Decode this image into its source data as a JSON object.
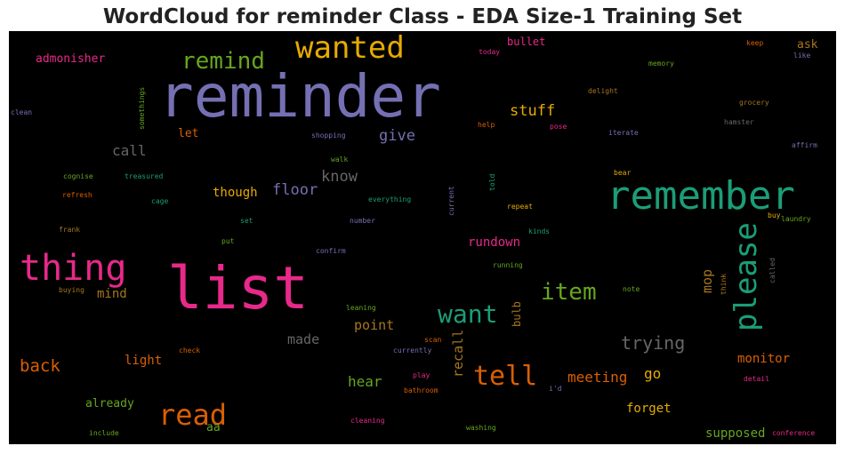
{
  "chart_data": {
    "type": "wordcloud",
    "title": "WordCloud for reminder Class - EDA Size-1 Training Set",
    "background": "#000000",
    "colormap": [
      "#7570b3",
      "#1b9e77",
      "#e7298a",
      "#d95f02",
      "#66a61e",
      "#e6ab02",
      "#a6761d",
      "#666666"
    ],
    "words": [
      {
        "text": "reminder",
        "weight": 100,
        "color": "#7570b3"
      },
      {
        "text": "list",
        "weight": 95,
        "color": "#e7298a"
      },
      {
        "text": "remember",
        "weight": 70,
        "color": "#1b9e77"
      },
      {
        "text": "thing",
        "weight": 65,
        "color": "#e7298a"
      },
      {
        "text": "wanted",
        "weight": 52,
        "color": "#e6ab02"
      },
      {
        "text": "please",
        "weight": 48,
        "color": "#1b9e77"
      },
      {
        "text": "read",
        "weight": 46,
        "color": "#d95f02"
      },
      {
        "text": "tell",
        "weight": 44,
        "color": "#d95f02"
      },
      {
        "text": "want",
        "weight": 40,
        "color": "#1b9e77"
      },
      {
        "text": "remind",
        "weight": 38,
        "color": "#66a61e"
      },
      {
        "text": "item",
        "weight": 36,
        "color": "#66a61e"
      },
      {
        "text": "trying",
        "weight": 27,
        "color": "#666666"
      },
      {
        "text": "back",
        "weight": 25,
        "color": "#d95f02"
      },
      {
        "text": "stuff",
        "weight": 22,
        "color": "#e6ab02"
      },
      {
        "text": "give",
        "weight": 22,
        "color": "#7570b3"
      },
      {
        "text": "know",
        "weight": 22,
        "color": "#666666"
      },
      {
        "text": "floor",
        "weight": 22,
        "color": "#7570b3"
      },
      {
        "text": "meeting",
        "weight": 22,
        "color": "#d95f02"
      },
      {
        "text": "hear",
        "weight": 22,
        "color": "#66a61e"
      },
      {
        "text": "call",
        "weight": 20,
        "color": "#666666"
      },
      {
        "text": "recall",
        "weight": 20,
        "color": "#a6761d"
      },
      {
        "text": "mop",
        "weight": 20,
        "color": "#a6761d"
      },
      {
        "text": "go",
        "weight": 20,
        "color": "#e6ab02"
      },
      {
        "text": "made",
        "weight": 19,
        "color": "#666666"
      },
      {
        "text": "point",
        "weight": 19,
        "color": "#a6761d"
      },
      {
        "text": "rundown",
        "weight": 19,
        "color": "#e7298a"
      },
      {
        "text": "monitor",
        "weight": 18,
        "color": "#d95f02"
      },
      {
        "text": "though",
        "weight": 18,
        "color": "#e6ab02"
      },
      {
        "text": "forget",
        "weight": 18,
        "color": "#e6ab02"
      },
      {
        "text": "already",
        "weight": 18,
        "color": "#66a61e"
      },
      {
        "text": "supposed",
        "weight": 18,
        "color": "#66a61e"
      },
      {
        "text": "mind",
        "weight": 18,
        "color": "#a6761d"
      },
      {
        "text": "light",
        "weight": 18,
        "color": "#d95f02"
      },
      {
        "text": "admonisher",
        "weight": 16,
        "color": "#e7298a"
      },
      {
        "text": "ask",
        "weight": 16,
        "color": "#a6761d"
      },
      {
        "text": "bullet",
        "weight": 16,
        "color": "#e7298a"
      },
      {
        "text": "let",
        "weight": 16,
        "color": "#d95f02"
      },
      {
        "text": "bulb",
        "weight": 16,
        "color": "#a6761d"
      },
      {
        "text": "aa",
        "weight": 16,
        "color": "#66a61e"
      },
      {
        "text": "today",
        "weight": 10,
        "color": "#e7298a"
      },
      {
        "text": "keep",
        "weight": 10,
        "color": "#d95f02"
      },
      {
        "text": "like",
        "weight": 10,
        "color": "#7570b3"
      },
      {
        "text": "memory",
        "weight": 10,
        "color": "#66a61e"
      },
      {
        "text": "delight",
        "weight": 10,
        "color": "#a6761d"
      },
      {
        "text": "grocery",
        "weight": 10,
        "color": "#a6761d"
      },
      {
        "text": "clean",
        "weight": 10,
        "color": "#7570b3"
      },
      {
        "text": "somethings",
        "weight": 10,
        "color": "#66a61e"
      },
      {
        "text": "help",
        "weight": 10,
        "color": "#d95f02"
      },
      {
        "text": "pose",
        "weight": 10,
        "color": "#e7298a"
      },
      {
        "text": "iterate",
        "weight": 10,
        "color": "#7570b3"
      },
      {
        "text": "hamster",
        "weight": 10,
        "color": "#666666"
      },
      {
        "text": "shopping",
        "weight": 10,
        "color": "#7570b3"
      },
      {
        "text": "affirm",
        "weight": 10,
        "color": "#7570b3"
      },
      {
        "text": "walk",
        "weight": 10,
        "color": "#66a61e"
      },
      {
        "text": "bear",
        "weight": 10,
        "color": "#e6ab02"
      },
      {
        "text": "cognise",
        "weight": 10,
        "color": "#66a61e"
      },
      {
        "text": "treasured",
        "weight": 10,
        "color": "#1b9e77"
      },
      {
        "text": "told",
        "weight": 10,
        "color": "#1b9e77"
      },
      {
        "text": "current",
        "weight": 10,
        "color": "#7570b3"
      },
      {
        "text": "refresh",
        "weight": 10,
        "color": "#d95f02"
      },
      {
        "text": "cage",
        "weight": 10,
        "color": "#1b9e77"
      },
      {
        "text": "everything",
        "weight": 10,
        "color": "#1b9e77"
      },
      {
        "text": "repeat",
        "weight": 10,
        "color": "#e6ab02"
      },
      {
        "text": "buy",
        "weight": 10,
        "color": "#e6ab02"
      },
      {
        "text": "laundry",
        "weight": 10,
        "color": "#66a61e"
      },
      {
        "text": "set",
        "weight": 10,
        "color": "#1b9e77"
      },
      {
        "text": "number",
        "weight": 10,
        "color": "#7570b3"
      },
      {
        "text": "frank",
        "weight": 10,
        "color": "#a6761d"
      },
      {
        "text": "kinds",
        "weight": 10,
        "color": "#1b9e77"
      },
      {
        "text": "put",
        "weight": 10,
        "color": "#66a61e"
      },
      {
        "text": "running",
        "weight": 10,
        "color": "#66a61e"
      },
      {
        "text": "confirm",
        "weight": 10,
        "color": "#7570b3"
      },
      {
        "text": "think",
        "weight": 10,
        "color": "#a6761d"
      },
      {
        "text": "called",
        "weight": 10,
        "color": "#666666"
      },
      {
        "text": "buying",
        "weight": 10,
        "color": "#a6761d"
      },
      {
        "text": "note",
        "weight": 10,
        "color": "#66a61e"
      },
      {
        "text": "leaning",
        "weight": 10,
        "color": "#66a61e"
      },
      {
        "text": "check",
        "weight": 10,
        "color": "#d95f02"
      },
      {
        "text": "scan",
        "weight": 10,
        "color": "#d95f02"
      },
      {
        "text": "currently",
        "weight": 10,
        "color": "#7570b3"
      },
      {
        "text": "play",
        "weight": 10,
        "color": "#e7298a"
      },
      {
        "text": "bathroom",
        "weight": 10,
        "color": "#d95f02"
      },
      {
        "text": "i'd",
        "weight": 10,
        "color": "#7570b3"
      },
      {
        "text": "detail",
        "weight": 10,
        "color": "#e7298a"
      },
      {
        "text": "cleaning",
        "weight": 10,
        "color": "#e7298a"
      },
      {
        "text": "washing",
        "weight": 10,
        "color": "#66a61e"
      },
      {
        "text": "include",
        "weight": 10,
        "color": "#66a61e"
      },
      {
        "text": "conference",
        "weight": 10,
        "color": "#e7298a"
      }
    ]
  }
}
